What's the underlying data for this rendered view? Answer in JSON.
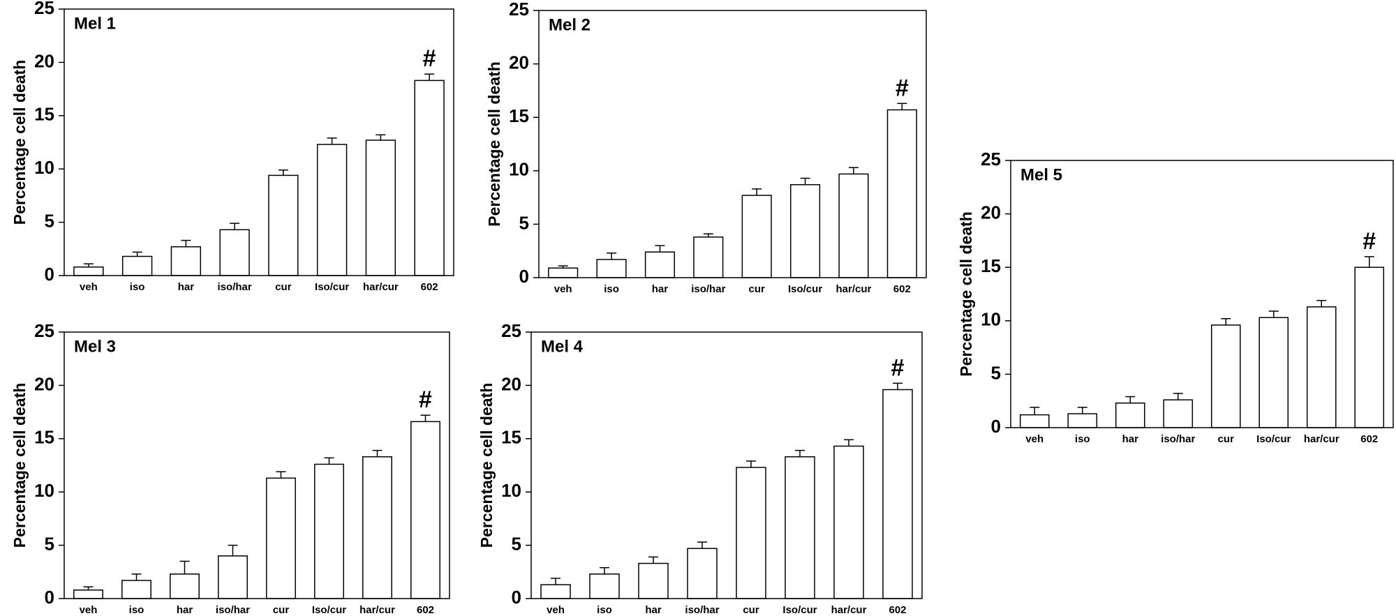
{
  "chart_data": [
    {
      "type": "bar",
      "title": "Mel 1",
      "ylabel": "Percentage cell death",
      "categories": [
        "veh",
        "iso",
        "har",
        "iso/har",
        "cur",
        "Iso/cur",
        "har/cur",
        "602"
      ],
      "values": [
        0.8,
        1.8,
        2.7,
        4.3,
        9.4,
        12.3,
        12.7,
        18.3
      ],
      "errors": [
        0.3,
        0.4,
        0.6,
        0.6,
        0.5,
        0.6,
        0.5,
        0.6
      ],
      "annotation": "#",
      "color": "#ffffff",
      "ylim": [
        0,
        25
      ],
      "yticks": [
        0,
        5,
        10,
        15,
        20,
        25
      ]
    },
    {
      "type": "bar",
      "title": "Mel 2",
      "ylabel": "Percentage cell death",
      "categories": [
        "veh",
        "iso",
        "har",
        "iso/har",
        "cur",
        "Iso/cur",
        "har/cur",
        "602"
      ],
      "values": [
        0.9,
        1.7,
        2.4,
        3.8,
        7.7,
        8.7,
        9.7,
        15.7
      ],
      "errors": [
        0.2,
        0.6,
        0.6,
        0.3,
        0.6,
        0.6,
        0.6,
        0.6
      ],
      "annotation": "#",
      "color": "#ffffff",
      "ylim": [
        0,
        25
      ],
      "yticks": [
        0,
        5,
        10,
        15,
        20,
        25
      ]
    },
    {
      "type": "bar",
      "title": "Mel 3",
      "ylabel": "Percentage cell death",
      "categories": [
        "veh",
        "iso",
        "har",
        "iso/har",
        "cur",
        "Iso/cur",
        "har/cur",
        "602"
      ],
      "values": [
        0.8,
        1.7,
        2.3,
        4.0,
        11.3,
        12.6,
        13.3,
        16.6
      ],
      "errors": [
        0.3,
        0.6,
        1.2,
        1.0,
        0.6,
        0.6,
        0.6,
        0.6
      ],
      "annotation": "#",
      "color": "#ffffff",
      "ylim": [
        0,
        25
      ],
      "yticks": [
        0,
        5,
        10,
        15,
        20,
        25
      ]
    },
    {
      "type": "bar",
      "title": "Mel 4",
      "ylabel": "Percentage cell death",
      "categories": [
        "veh",
        "iso",
        "har",
        "iso/har",
        "cur",
        "Iso/cur",
        "har/cur",
        "602"
      ],
      "values": [
        1.3,
        2.3,
        3.3,
        4.7,
        12.3,
        13.3,
        14.3,
        19.6
      ],
      "errors": [
        0.6,
        0.6,
        0.6,
        0.6,
        0.6,
        0.6,
        0.6,
        0.6
      ],
      "annotation": "#",
      "color": "#ffffff",
      "ylim": [
        0,
        25
      ],
      "yticks": [
        0,
        5,
        10,
        15,
        20,
        25
      ]
    },
    {
      "type": "bar",
      "title": "Mel 5",
      "ylabel": "Percentage cell death",
      "categories": [
        "veh",
        "iso",
        "har",
        "iso/har",
        "cur",
        "Iso/cur",
        "har/cur",
        "602"
      ],
      "values": [
        1.2,
        1.3,
        2.3,
        2.6,
        9.6,
        10.3,
        11.3,
        15.0
      ],
      "errors": [
        0.7,
        0.6,
        0.6,
        0.6,
        0.6,
        0.6,
        0.6,
        1.0
      ],
      "annotation": "#",
      "color": "#ffffff",
      "ylim": [
        0,
        25
      ],
      "yticks": [
        0,
        5,
        10,
        15,
        20,
        25
      ]
    }
  ]
}
